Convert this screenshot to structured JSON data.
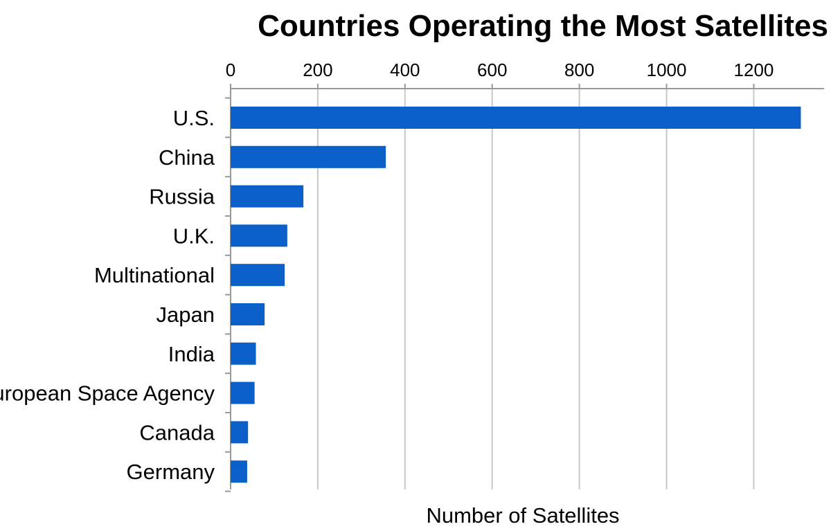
{
  "chart_data": {
    "type": "bar",
    "orientation": "horizontal",
    "title": "Countries Operating the Most Satellites",
    "xlabel": "Number of Satellites",
    "ylabel": "",
    "categories": [
      "U.S.",
      "China",
      "Russia",
      "U.K.",
      "Multinational",
      "Japan",
      "India",
      "European Space Agency",
      "Canada",
      "Germany"
    ],
    "values": [
      1308,
      356,
      167,
      130,
      124,
      78,
      58,
      55,
      40,
      38
    ],
    "xlim": [
      0,
      1320
    ],
    "xticks": [
      0,
      200,
      400,
      600,
      800,
      1000,
      1200
    ],
    "x_axis_position": "top",
    "grid": true,
    "legend": "none",
    "colors": {
      "bar": "#0A5FC8",
      "grid": "#c8c8c8",
      "axis": "#999999"
    }
  }
}
